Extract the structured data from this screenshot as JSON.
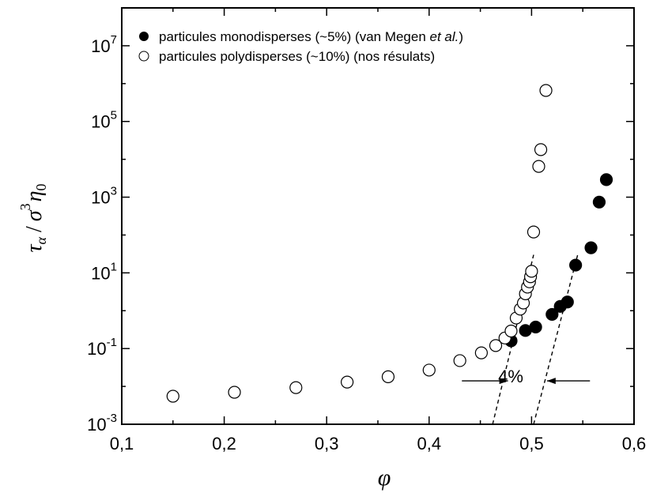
{
  "chart_data": {
    "type": "scatter",
    "title": "",
    "xlabel": "φ",
    "ylabel": {
      "tau": "τ",
      "tau_sub": "α",
      "slash": "/",
      "sigma": "σ",
      "sigma_sup": "3",
      "eta": "η",
      "eta_sub": "0"
    },
    "x_scale": "linear",
    "y_scale": "log",
    "xlim": [
      0.1,
      0.6
    ],
    "ylim_exponent": [
      -3,
      8
    ],
    "x_ticks": [
      {
        "value": 0.1,
        "label": "0,1"
      },
      {
        "value": 0.2,
        "label": "0,2"
      },
      {
        "value": 0.3,
        "label": "0,3"
      },
      {
        "value": 0.4,
        "label": "0,4"
      },
      {
        "value": 0.5,
        "label": "0,5"
      },
      {
        "value": 0.6,
        "label": "0,6"
      }
    ],
    "y_ticks": [
      {
        "exp": -3,
        "base": "10",
        "sup": "-3"
      },
      {
        "exp": -1,
        "base": "10",
        "sup": "-1"
      },
      {
        "exp": 1,
        "base": "10",
        "sup": "1"
      },
      {
        "exp": 3,
        "base": "10",
        "sup": "3"
      },
      {
        "exp": 5,
        "base": "10",
        "sup": "5"
      },
      {
        "exp": 7,
        "base": "10",
        "sup": "7"
      }
    ],
    "legend_position": "top-left",
    "series": [
      {
        "name_parts": [
          "particules monodisperses (~5%) (van Megen ",
          "et al.",
          ")"
        ],
        "marker": "filled-circle",
        "color": "#000000",
        "points": [
          {
            "x": 0.48,
            "y": 0.16
          },
          {
            "x": 0.494,
            "y": 0.3
          },
          {
            "x": 0.504,
            "y": 0.37
          },
          {
            "x": 0.52,
            "y": 0.8
          },
          {
            "x": 0.528,
            "y": 1.3
          },
          {
            "x": 0.535,
            "y": 1.7
          },
          {
            "x": 0.543,
            "y": 16
          },
          {
            "x": 0.558,
            "y": 46
          },
          {
            "x": 0.566,
            "y": 740
          },
          {
            "x": 0.573,
            "y": 2900
          }
        ]
      },
      {
        "name": "particules polydisperses (~10%) (nos résulats)",
        "marker": "open-circle",
        "color": "#000000",
        "points": [
          {
            "x": 0.15,
            "y": 0.0055
          },
          {
            "x": 0.21,
            "y": 0.007
          },
          {
            "x": 0.27,
            "y": 0.0093
          },
          {
            "x": 0.32,
            "y": 0.013
          },
          {
            "x": 0.36,
            "y": 0.018
          },
          {
            "x": 0.4,
            "y": 0.027
          },
          {
            "x": 0.43,
            "y": 0.048
          },
          {
            "x": 0.451,
            "y": 0.077
          },
          {
            "x": 0.465,
            "y": 0.12
          },
          {
            "x": 0.474,
            "y": 0.19
          },
          {
            "x": 0.48,
            "y": 0.29
          },
          {
            "x": 0.485,
            "y": 0.64
          },
          {
            "x": 0.489,
            "y": 1.1
          },
          {
            "x": 0.492,
            "y": 1.6
          },
          {
            "x": 0.494,
            "y": 2.8
          },
          {
            "x": 0.496,
            "y": 4.2
          },
          {
            "x": 0.498,
            "y": 5.8
          },
          {
            "x": 0.499,
            "y": 7.9
          },
          {
            "x": 0.5,
            "y": 11
          },
          {
            "x": 0.502,
            "y": 120
          },
          {
            "x": 0.507,
            "y": 6500
          },
          {
            "x": 0.509,
            "y": 18000
          },
          {
            "x": 0.514,
            "y": 660000
          }
        ]
      }
    ],
    "annotations": {
      "gap_label": "4%",
      "fit_lines": [
        {
          "from": {
            "x": 0.462,
            "y": 0.001
          },
          "to": {
            "x": 0.502,
            "y": 30
          }
        },
        {
          "from": {
            "x": 0.502,
            "y": 0.001
          },
          "to": {
            "x": 0.545,
            "y": 30
          }
        }
      ],
      "arrows": [
        {
          "from": {
            "x": 0.432,
            "y": 0.014
          },
          "to": {
            "x": 0.477,
            "y": 0.014
          }
        },
        {
          "from": {
            "x": 0.557,
            "y": 0.014
          },
          "to": {
            "x": 0.515,
            "y": 0.014
          }
        }
      ]
    }
  }
}
